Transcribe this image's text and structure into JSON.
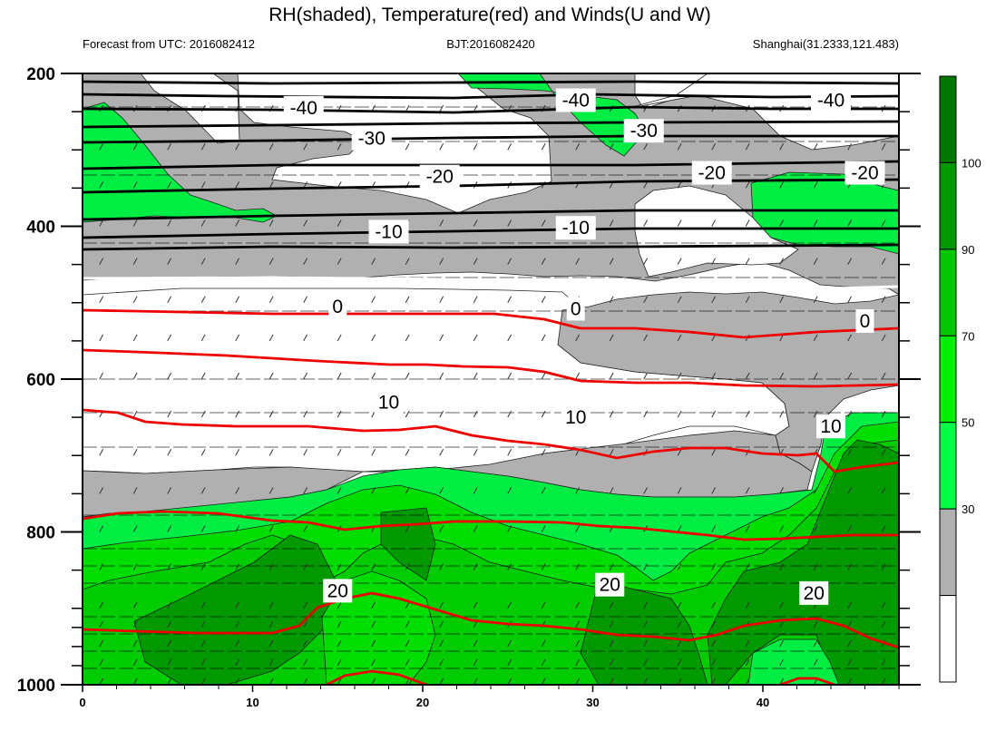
{
  "chart_data": {
    "type": "contour",
    "title": "RH(shaded), Temperature(red) and Winds(U and W)",
    "left_subtitle": "Forecast from UTC: 2016082412",
    "center_subtitle": "BJT:2016082420",
    "right_subtitle": "Shanghai(31.2333,121.483)",
    "x_range": [
      0,
      48
    ],
    "x_ticks": [
      "0",
      "10",
      "20",
      "30",
      "40"
    ],
    "y_range_hPa": [
      200,
      1000
    ],
    "y_axis_inverted": true,
    "y_ticks": [
      "200",
      "400",
      "600",
      "800",
      "1000"
    ],
    "pressure_levels_hPa": [
      200,
      250,
      300,
      350,
      400,
      450,
      500,
      550,
      600,
      650,
      700,
      750,
      800,
      850,
      900,
      925,
      950,
      975,
      1000
    ],
    "rh_colorbar": {
      "levels": [
        "30",
        "50",
        "70",
        "90",
        "100"
      ],
      "colors": [
        "#ffffff",
        "#b0b0b0",
        "#00ff44",
        "#00ee00",
        "#00c800",
        "#009a00",
        "#007800"
      ]
    },
    "rh_colors": {
      "lt30": "#ffffff",
      "r30_50": "#b0b0b0",
      "r50_70": "#00ff44",
      "r70_90": "#00ee00",
      "r90_100": "#00c800",
      "gt100": "#009a00"
    },
    "temperature_contours": [
      {
        "label": "-40",
        "color": "#000000",
        "positions": [
          [
            13,
            245
          ],
          [
            29,
            235
          ],
          [
            44,
            235
          ]
        ]
      },
      {
        "label": "-30",
        "color": "#000000",
        "positions": [
          [
            17,
            285
          ],
          [
            33,
            275
          ]
        ]
      },
      {
        "label": "-20",
        "color": "#000000",
        "positions": [
          [
            21,
            335
          ],
          [
            37,
            330
          ],
          [
            46,
            330
          ]
        ]
      },
      {
        "label": "-10",
        "color": "#000000",
        "positions": [
          [
            18,
            407
          ],
          [
            29,
            402
          ]
        ]
      },
      {
        "label": "0",
        "color": "#000000",
        "positions": [
          [
            15,
            505
          ],
          [
            29,
            508
          ],
          [
            46,
            524
          ]
        ]
      },
      {
        "label": "10",
        "color": "#ff0000",
        "positions": [
          [
            18,
            630
          ],
          [
            29,
            650
          ],
          [
            44,
            662
          ]
        ]
      },
      {
        "label": "20",
        "color": "#ff0000",
        "positions": [
          [
            15,
            877
          ],
          [
            31,
            869
          ],
          [
            43,
            880
          ]
        ]
      }
    ]
  }
}
